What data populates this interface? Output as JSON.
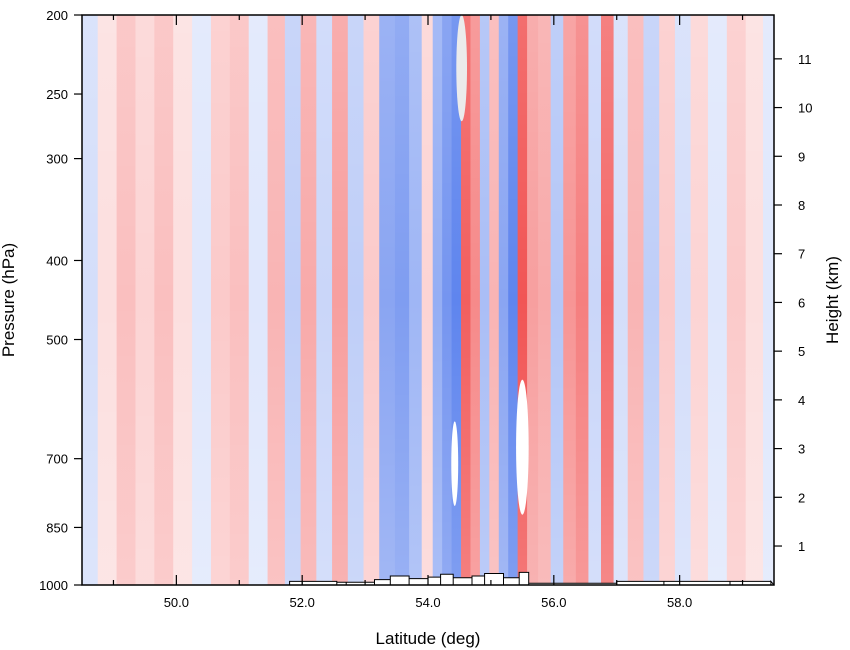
{
  "chart_data": {
    "type": "heatmap",
    "title": "",
    "xlabel": "Latitude (deg)",
    "ylabel": "Pressure (hPa)",
    "y2label": "Height (km)",
    "xlim": [
      48.5,
      59.5
    ],
    "ylim": [
      1000,
      200
    ],
    "y2lim": [
      0.2,
      11.9
    ],
    "y_scale": "log",
    "grid": false,
    "x_ticks": [
      {
        "value": 50,
        "label": "50.0"
      },
      {
        "value": 52,
        "label": "52.0"
      },
      {
        "value": 54,
        "label": "54.0"
      },
      {
        "value": 56,
        "label": "56.0"
      },
      {
        "value": 58,
        "label": "58.0"
      }
    ],
    "y_ticks": [
      {
        "value": 1000,
        "label": "1000"
      },
      {
        "value": 850,
        "label": "850"
      },
      {
        "value": 700,
        "label": "700"
      },
      {
        "value": 500,
        "label": "500"
      },
      {
        "value": 400,
        "label": "400"
      },
      {
        "value": 300,
        "label": "300"
      },
      {
        "value": 250,
        "label": "250"
      },
      {
        "value": 200,
        "label": "200"
      }
    ],
    "y2_ticks": [
      {
        "value": 1,
        "label": "1"
      },
      {
        "value": 2,
        "label": "2"
      },
      {
        "value": 3,
        "label": "3"
      },
      {
        "value": 4,
        "label": "4"
      },
      {
        "value": 5,
        "label": "5"
      },
      {
        "value": 6,
        "label": "6"
      },
      {
        "value": 7,
        "label": "7"
      },
      {
        "value": 8,
        "label": "8"
      },
      {
        "value": 9,
        "label": "9"
      },
      {
        "value": 10,
        "label": "10"
      },
      {
        "value": 11,
        "label": "11"
      }
    ],
    "colormap": {
      "negative": "#2a5ce8",
      "neutral": "#ffffff",
      "positive": "#ee2a2a",
      "missing": "#ebebeb"
    },
    "vertical_bands": [
      {
        "lat": 48.6,
        "value": -0.2
      },
      {
        "lat": 48.9,
        "value": 0.15
      },
      {
        "lat": 49.2,
        "value": 0.3
      },
      {
        "lat": 49.5,
        "value": 0.2
      },
      {
        "lat": 49.8,
        "value": 0.3
      },
      {
        "lat": 50.1,
        "value": 0.15
      },
      {
        "lat": 50.4,
        "value": -0.15
      },
      {
        "lat": 50.7,
        "value": 0.25
      },
      {
        "lat": 51.0,
        "value": 0.3
      },
      {
        "lat": 51.3,
        "value": -0.15
      },
      {
        "lat": 51.6,
        "value": 0.35
      },
      {
        "lat": 51.85,
        "value": -0.3
      },
      {
        "lat": 52.1,
        "value": 0.4
      },
      {
        "lat": 52.35,
        "value": -0.25
      },
      {
        "lat": 52.6,
        "value": 0.45
      },
      {
        "lat": 52.85,
        "value": -0.3
      },
      {
        "lat": 53.1,
        "value": 0.25
      },
      {
        "lat": 53.35,
        "value": -0.55
      },
      {
        "lat": 53.6,
        "value": -0.6
      },
      {
        "lat": 53.8,
        "value": -0.45
      },
      {
        "lat": 54.0,
        "value": 0.2
      },
      {
        "lat": 54.15,
        "value": -0.5
      },
      {
        "lat": 54.3,
        "value": -0.65
      },
      {
        "lat": 54.45,
        "value": -0.75
      },
      {
        "lat": 54.6,
        "value": 0.75
      },
      {
        "lat": 54.75,
        "value": 0.55
      },
      {
        "lat": 54.9,
        "value": -0.4
      },
      {
        "lat": 55.05,
        "value": 0.35
      },
      {
        "lat": 55.2,
        "value": -0.55
      },
      {
        "lat": 55.35,
        "value": -0.75
      },
      {
        "lat": 55.5,
        "value": 0.8
      },
      {
        "lat": 55.65,
        "value": 0.45
      },
      {
        "lat": 55.85,
        "value": 0.4
      },
      {
        "lat": 56.05,
        "value": -0.35
      },
      {
        "lat": 56.25,
        "value": 0.5
      },
      {
        "lat": 56.45,
        "value": 0.6
      },
      {
        "lat": 56.65,
        "value": -0.25
      },
      {
        "lat": 56.85,
        "value": 0.7
      },
      {
        "lat": 57.05,
        "value": -0.2
      },
      {
        "lat": 57.3,
        "value": 0.35
      },
      {
        "lat": 57.55,
        "value": -0.3
      },
      {
        "lat": 57.8,
        "value": 0.25
      },
      {
        "lat": 58.05,
        "value": -0.2
      },
      {
        "lat": 58.3,
        "value": 0.2
      },
      {
        "lat": 58.6,
        "value": -0.15
      },
      {
        "lat": 58.9,
        "value": 0.25
      },
      {
        "lat": 59.2,
        "value": 0.15
      },
      {
        "lat": 59.45,
        "value": -0.15
      }
    ],
    "missing_regions": [
      {
        "lat_min": 54.45,
        "lat_max": 54.62,
        "p_top": 200,
        "p_bottom": 270
      },
      {
        "lat_min": 54.37,
        "lat_max": 54.48,
        "p_top": 630,
        "p_bottom": 800
      },
      {
        "lat_min": 55.4,
        "lat_max": 55.6,
        "p_top": 560,
        "p_bottom": 820
      }
    ],
    "terrain_profile": [
      {
        "lat": 51.8,
        "p": 990
      },
      {
        "lat": 52.0,
        "p": 990
      },
      {
        "lat": 52.55,
        "p": 992
      },
      {
        "lat": 52.7,
        "p": 992
      },
      {
        "lat": 53.15,
        "p": 985
      },
      {
        "lat": 53.4,
        "p": 975
      },
      {
        "lat": 53.7,
        "p": 982
      },
      {
        "lat": 54.0,
        "p": 978
      },
      {
        "lat": 54.2,
        "p": 970
      },
      {
        "lat": 54.4,
        "p": 980
      },
      {
        "lat": 54.7,
        "p": 975
      },
      {
        "lat": 54.9,
        "p": 968
      },
      {
        "lat": 55.2,
        "p": 980
      },
      {
        "lat": 55.45,
        "p": 965
      },
      {
        "lat": 55.6,
        "p": 995
      },
      {
        "lat": 57.0,
        "p": 990
      },
      {
        "lat": 57.75,
        "p": 990
      },
      {
        "lat": 58.8,
        "p": 990
      },
      {
        "lat": 59.45,
        "p": 990
      }
    ]
  }
}
